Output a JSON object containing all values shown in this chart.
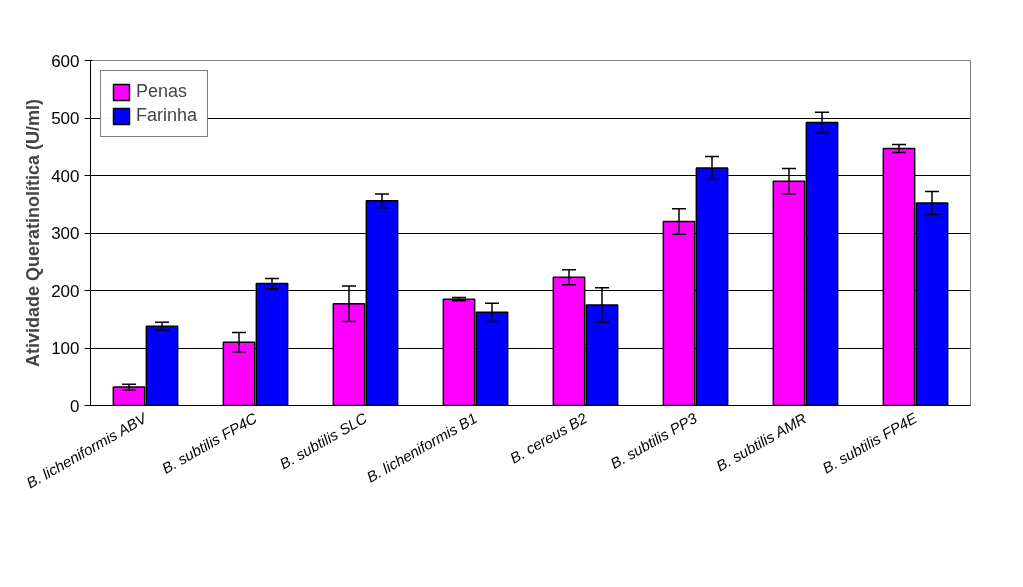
{
  "chart_data": {
    "type": "bar",
    "ylabel": "Atividade Queratinolítica (U/ml)",
    "categories": [
      "B. licheniformis ABV",
      "B. subtilis FP4C",
      "B. subtilis SLC",
      "B. licheniformis B1",
      "B. cereus B2",
      "B. subtilis PP3",
      "B. subtilis AMR",
      "B. subtilis FP4E"
    ],
    "series": [
      {
        "name": "Penas",
        "color": "#ff00ff",
        "values": [
          32,
          110,
          177,
          185,
          223,
          320,
          390,
          447
        ],
        "errors": [
          5,
          17,
          31,
          3,
          13,
          22,
          22,
          7
        ]
      },
      {
        "name": "Farinha",
        "color": "#0000ff",
        "values": [
          138,
          212,
          356,
          162,
          175,
          413,
          492,
          352
        ],
        "errors": [
          7,
          9,
          12,
          16,
          30,
          20,
          18,
          20
        ]
      }
    ],
    "ylim": [
      0,
      600
    ],
    "yticks": [
      0,
      100,
      200,
      300,
      400,
      500,
      600
    ],
    "grid": "y",
    "legend": "top left"
  }
}
